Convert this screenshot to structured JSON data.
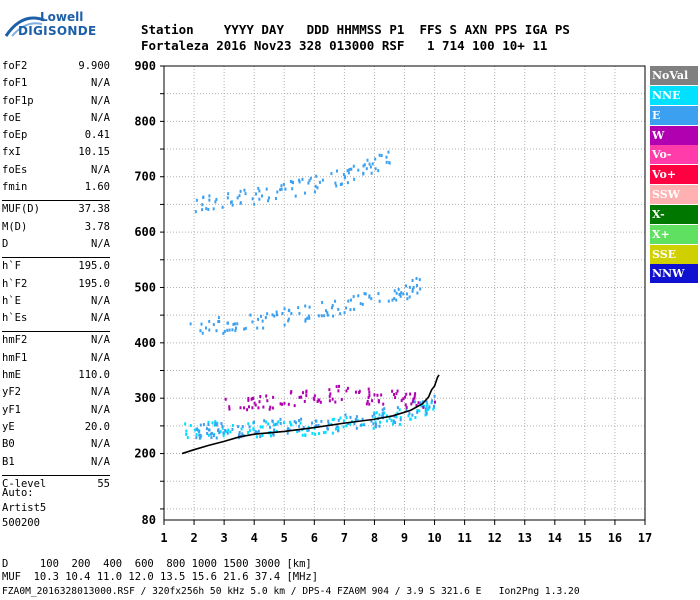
{
  "logo": {
    "brand_top": "Lowell",
    "brand_bottom": "DIGISONDE"
  },
  "header": {
    "columns": [
      "Station",
      "YYYY DAY",
      "DDD",
      "HHMMSS",
      "P1",
      "FFS",
      "S",
      "AXN",
      "PPS",
      "IGA",
      "PS"
    ],
    "line1": "Station    YYYY DAY   DDD HHMMSS P1  FFS S AXN PPS IGA PS",
    "line2": "Fortaleza 2016 Nov23 328 013000 RSF   1 714 100 10+ 11"
  },
  "params_groups": [
    [
      {
        "label": "foF2",
        "value": "9.900"
      },
      {
        "label": "foF1",
        "value": "N/A"
      },
      {
        "label": "foF1p",
        "value": "N/A"
      },
      {
        "label": "foE",
        "value": "N/A"
      },
      {
        "label": "foEp",
        "value": "0.41"
      },
      {
        "label": "fxI",
        "value": "10.15"
      },
      {
        "label": "foEs",
        "value": "N/A"
      },
      {
        "label": "fmin",
        "value": "1.60"
      }
    ],
    [
      {
        "label": "MUF(D)",
        "value": "37.38"
      },
      {
        "label": "M(D)",
        "value": "3.78"
      },
      {
        "label": "D",
        "value": "N/A"
      }
    ],
    [
      {
        "label": "h`F",
        "value": "195.0"
      },
      {
        "label": "h`F2",
        "value": "195.0"
      },
      {
        "label": "h`E",
        "value": "N/A"
      },
      {
        "label": "h`Es",
        "value": "N/A"
      }
    ],
    [
      {
        "label": "hmF2",
        "value": "N/A"
      },
      {
        "label": "hmF1",
        "value": "N/A"
      },
      {
        "label": "hmE",
        "value": "110.0"
      },
      {
        "label": "yF2",
        "value": "N/A"
      },
      {
        "label": "yF1",
        "value": "N/A"
      },
      {
        "label": "yE",
        "value": "20.0"
      },
      {
        "label": "B0",
        "value": "N/A"
      },
      {
        "label": "B1",
        "value": "N/A"
      }
    ],
    [
      {
        "label": "C-level",
        "value": "55"
      }
    ]
  ],
  "autoscaling": {
    "line1": "Auto:",
    "line2": "Artist5",
    "line3": "500200"
  },
  "legend": [
    {
      "label": "NoVal",
      "color": "#808080"
    },
    {
      "label": "NNE",
      "color": "#00e0ff"
    },
    {
      "label": "E",
      "color": "#3ca0f0"
    },
    {
      "label": "W",
      "color": "#b000b0"
    },
    {
      "label": "Vo-",
      "color": "#ff3caa"
    },
    {
      "label": "Vo+",
      "color": "#ff0040"
    },
    {
      "label": "SSW",
      "color": "#ffb0b0"
    },
    {
      "label": "X-",
      "color": "#007800"
    },
    {
      "label": "X+",
      "color": "#60e060"
    },
    {
      "label": "SSE",
      "color": "#d0d000"
    },
    {
      "label": "NNW",
      "color": "#1010d0"
    }
  ],
  "bottom": {
    "d_line": "D     100  200  400  600  800 1000 1500 3000 [km]",
    "muf_line": "MUF  10.3 10.4 11.0 12.0 13.5 15.6 21.6 37.4 [MHz]",
    "footer": "FZA0M_2016328013000.RSF / 320fx256h 50 kHz 5.0 km / DPS-4 FZA0M 904 / 3.9 S 321.6 E   Ion2Png 1.3.20"
  },
  "chart_data": {
    "type": "scatter",
    "x_ticks": [
      "1",
      "2",
      "3",
      "4",
      "5",
      "6",
      "7",
      "8",
      "9",
      "10",
      "11",
      "12",
      "13",
      "14",
      "15",
      "16",
      "17"
    ],
    "y_ticks": [
      "80",
      "200",
      "300",
      "400",
      "500",
      "600",
      "700",
      "800",
      "900"
    ],
    "xlim": [
      1,
      17
    ],
    "ylim": [
      80,
      900
    ],
    "grid": true,
    "trace": {
      "x": [
        1.6,
        2.0,
        2.5,
        3.0,
        3.5,
        4.0,
        5.0,
        6.0,
        7.0,
        8.0,
        8.6,
        9.2,
        9.6,
        9.8,
        9.9,
        10.0,
        10.05,
        10.1,
        10.15
      ],
      "y": [
        200,
        207,
        215,
        222,
        230,
        235,
        240,
        247,
        255,
        262,
        268,
        278,
        290,
        302,
        315,
        322,
        330,
        338,
        342
      ]
    },
    "echo_traces": [
      {
        "name": "NNE",
        "x": [
          1.6,
          2.5,
          3.5,
          4.5,
          5.5,
          6.5,
          7.5,
          8.5,
          9.5,
          10.0
        ],
        "y": [
          245,
          245,
          250,
          245,
          250,
          252,
          258,
          265,
          280,
          300
        ]
      },
      {
        "name": "E",
        "x": [
          2.0,
          2.5,
          3.0,
          4.0,
          5.0,
          6.0,
          7.0,
          8.0,
          9.0,
          10.0
        ],
        "y": [
          240,
          242,
          245,
          248,
          250,
          253,
          258,
          265,
          278,
          295
        ]
      },
      {
        "name": "E",
        "x": [
          1.8,
          3.0,
          4.0,
          5.0,
          6.0,
          7.0,
          8.0,
          9.0,
          9.5
        ],
        "y": [
          428,
          435,
          440,
          450,
          460,
          470,
          482,
          495,
          510
        ]
      },
      {
        "name": "E",
        "x": [
          2.0,
          3.0,
          4.0,
          5.0,
          6.0,
          7.0,
          7.8,
          8.5
        ],
        "y": [
          648,
          660,
          668,
          678,
          690,
          705,
          720,
          740
        ]
      },
      {
        "name": "W",
        "x": [
          3.0,
          4.0,
          5.0,
          6.0,
          7.0,
          8.0,
          9.0,
          10.0
        ],
        "y": [
          290,
          295,
          300,
          308,
          312,
          305,
          300,
          295
        ]
      }
    ]
  }
}
